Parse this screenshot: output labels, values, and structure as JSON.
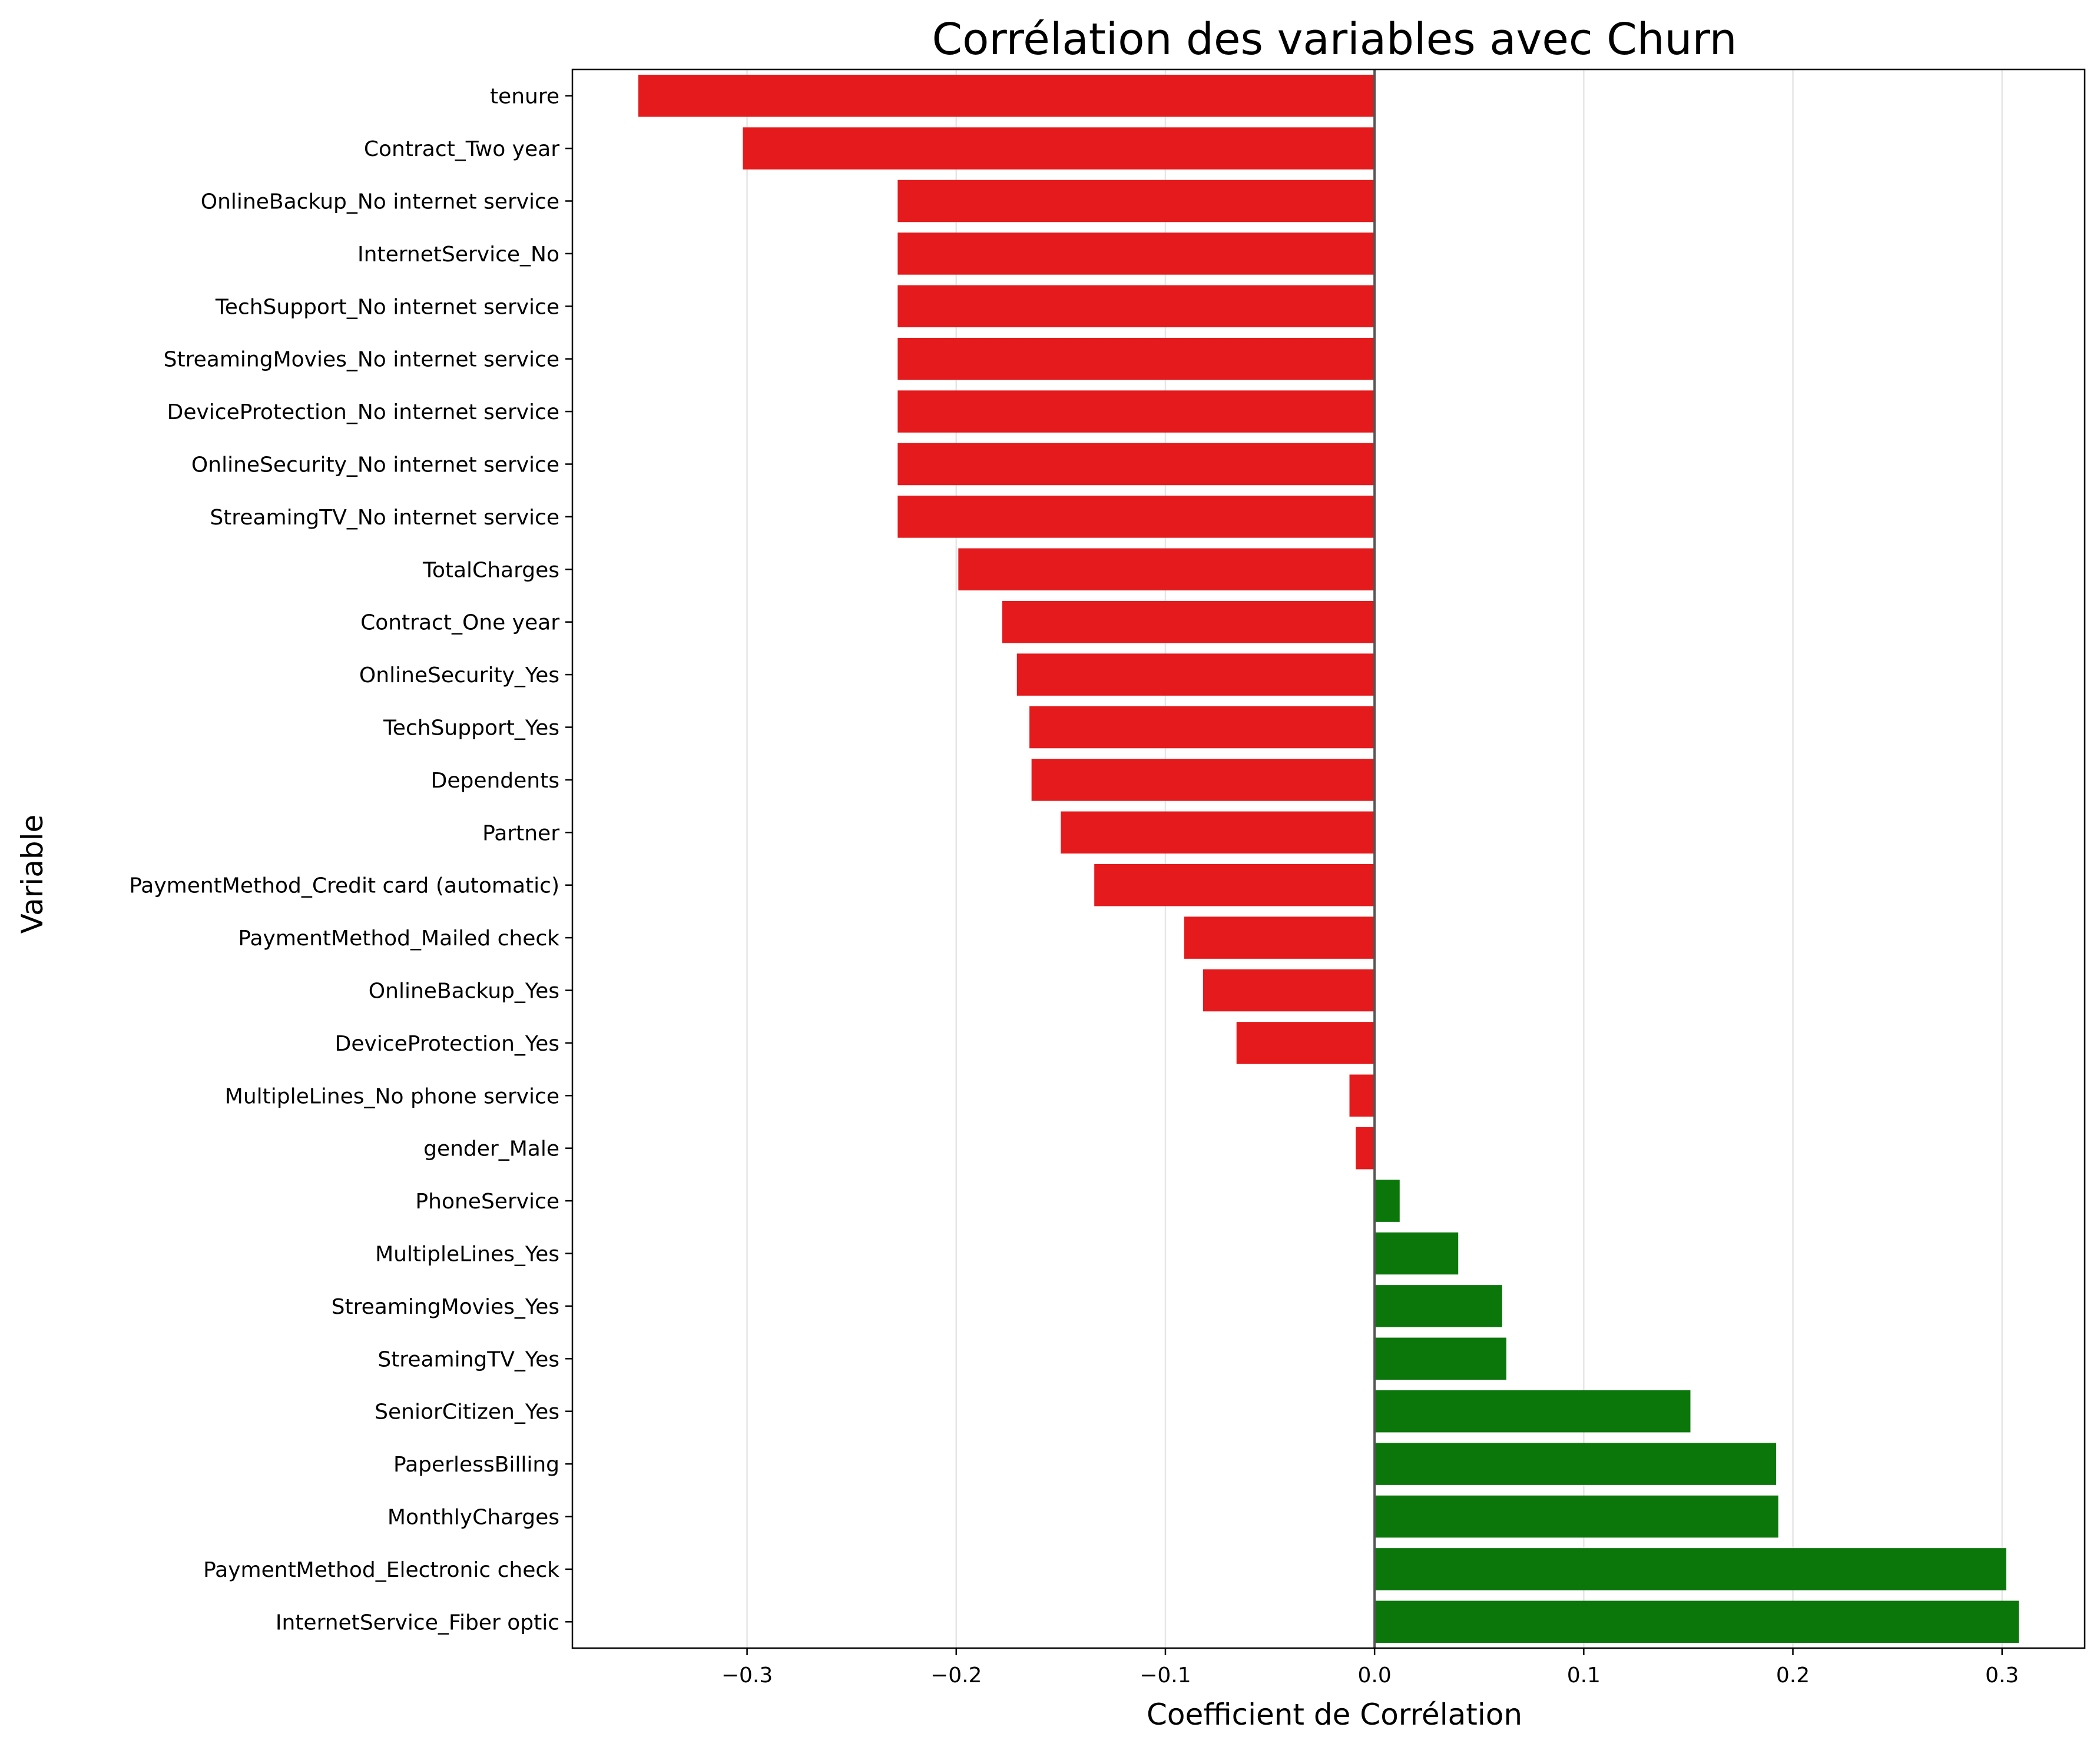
{
  "chart_data": {
    "type": "bar",
    "orientation": "horizontal",
    "title": "Corrélation des variables avec Churn",
    "xlabel": "Coefficient de Corrélation",
    "ylabel": "Variable",
    "xlim": [
      -0.3835,
      0.3395
    ],
    "xticks": [
      -0.3,
      -0.2,
      -0.1,
      0.0,
      0.1,
      0.2,
      0.3
    ],
    "xtick_labels": [
      "−0.3",
      "−0.2",
      "−0.1",
      "0.0",
      "0.1",
      "0.2",
      "0.3"
    ],
    "grid": "vertical",
    "colors": {
      "negative": "#e41a1c",
      "positive": "#0b770b",
      "zero_line": "#555555",
      "grid": "#e6e6e6"
    },
    "categories": [
      "tenure",
      "Contract_Two year",
      "OnlineBackup_No internet service",
      "InternetService_No",
      "TechSupport_No internet service",
      "StreamingMovies_No internet service",
      "DeviceProtection_No internet service",
      "OnlineSecurity_No internet service",
      "StreamingTV_No internet service",
      "TotalCharges",
      "Contract_One year",
      "OnlineSecurity_Yes",
      "TechSupport_Yes",
      "Dependents",
      "Partner",
      "PaymentMethod_Credit card (automatic)",
      "PaymentMethod_Mailed check",
      "OnlineBackup_Yes",
      "DeviceProtection_Yes",
      "MultipleLines_No phone service",
      "gender_Male",
      "PhoneService",
      "MultipleLines_Yes",
      "StreamingMovies_Yes",
      "StreamingTV_Yes",
      "SeniorCitizen_Yes",
      "PaperlessBilling",
      "MonthlyCharges",
      "PaymentMethod_Electronic check",
      "InternetService_Fiber optic"
    ],
    "values": [
      -0.352,
      -0.302,
      -0.228,
      -0.228,
      -0.228,
      -0.228,
      -0.228,
      -0.228,
      -0.228,
      -0.199,
      -0.178,
      -0.171,
      -0.165,
      -0.164,
      -0.15,
      -0.134,
      -0.091,
      -0.082,
      -0.066,
      -0.012,
      -0.009,
      0.012,
      0.04,
      0.061,
      0.063,
      0.151,
      0.192,
      0.193,
      0.302,
      0.308
    ]
  }
}
